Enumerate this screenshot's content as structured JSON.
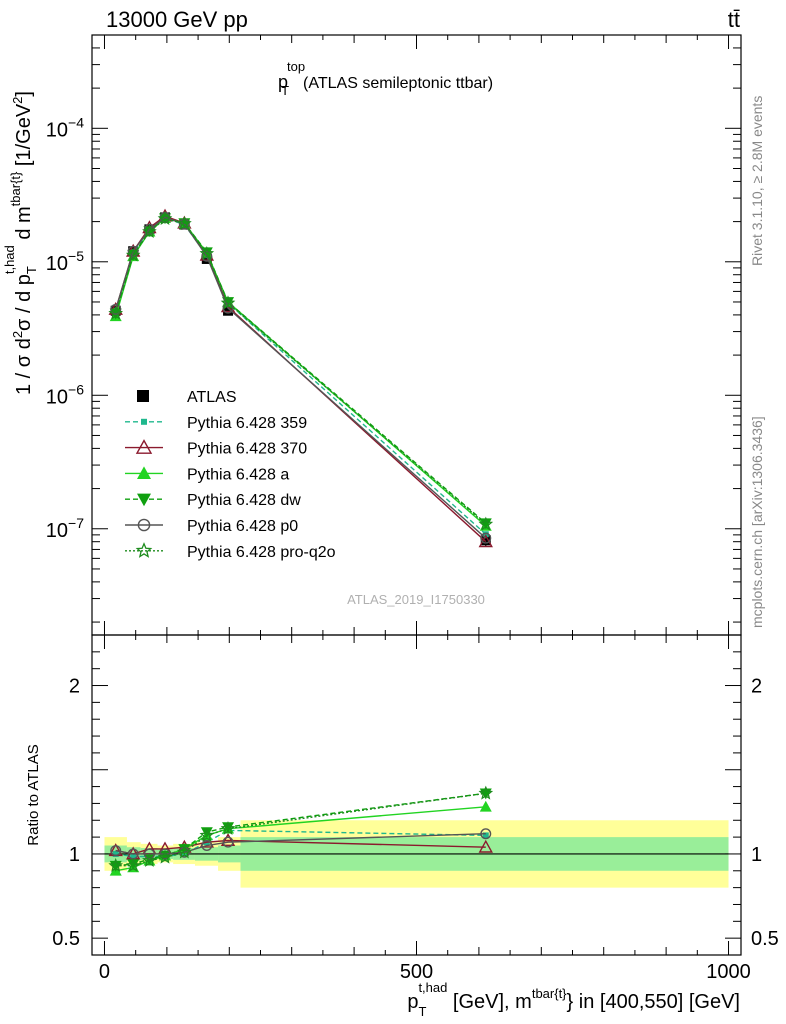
{
  "header": {
    "energy_label": "13000 GeV pp",
    "process_label": "tt̄"
  },
  "side": {
    "rivet": "Rivet 3.1.10, ≥ 2.8M events",
    "mcplots": "mcplots.cern.ch [arXiv:1306.3436]"
  },
  "analysis_label": "ATLAS_2019_I1750330",
  "chart_data": {
    "type": "line",
    "title": {
      "p": "p",
      "sup": "top",
      "sub": "T",
      "rest": "(ATLAS semileptonic ttbar)"
    },
    "ylabel": "1 / σ d²σ / d p_T^{t,had} d m^{tbar{t}} [1/GeV²]",
    "ratio_ylabel": "Ratio to ATLAS",
    "xlabel": "p_T^{t,had} [GeV], m^{tbar{t}} in [400,550] [GeV]",
    "xlim": [
      -20,
      1020
    ],
    "ylim": [
      1.6e-08,
      0.0005
    ],
    "yscale": "log",
    "ratio_ylim": [
      0.4,
      2.3
    ],
    "x_ticks": [
      {
        "v": 0,
        "label": "0"
      },
      {
        "v": 500,
        "label": "500"
      },
      {
        "v": 1000,
        "label": "1000"
      }
    ],
    "y_ticks": [
      {
        "v": 1e-07,
        "base": "10",
        "exp": "−7"
      },
      {
        "v": 1e-06,
        "base": "10",
        "exp": "−6"
      },
      {
        "v": 1e-05,
        "base": "10",
        "exp": "−5"
      },
      {
        "v": 0.0001,
        "base": "10",
        "exp": "−4"
      }
    ],
    "ratio_ticks": [
      {
        "v": 0.5,
        "label": "0.5"
      },
      {
        "v": 1,
        "label": "1"
      },
      {
        "v": 2,
        "label": "2"
      }
    ],
    "legend_position": "center-left",
    "x": [
      18,
      46,
      72,
      97,
      128,
      164,
      198,
      611
    ],
    "x_edges": [
      0,
      36,
      58,
      85,
      110,
      145,
      182,
      218,
      1000
    ],
    "data": {
      "name": "ATLAS",
      "values": [
        4.3e-06,
        1.2e-05,
        1.75e-05,
        2.15e-05,
        1.9e-05,
        1.05e-05,
        4.3e-06,
        8.2e-08
      ],
      "band_inner": [
        0.05,
        0.04,
        0.035,
        0.03,
        0.035,
        0.04,
        0.05,
        0.1
      ],
      "band_outer": [
        0.1,
        0.07,
        0.06,
        0.05,
        0.06,
        0.07,
        0.1,
        0.2
      ]
    },
    "series": [
      {
        "name": "Pythia 6.428 359",
        "color": "#1fb88d",
        "dash": "5,3",
        "marker": "square-small",
        "values": [
          4.3e-06,
          1.18e-05,
          1.72e-05,
          2.12e-05,
          1.9e-05,
          1.12e-05,
          4.9e-06,
          9.1e-08
        ],
        "ratio": [
          1.0,
          0.985,
          0.985,
          0.985,
          1.0,
          1.07,
          1.14,
          1.11
        ]
      },
      {
        "name": "Pythia 6.428 370",
        "color": "#8b1a2e",
        "dash": "",
        "marker": "triangle-open",
        "values": [
          4.4e-06,
          1.2e-05,
          1.8e-05,
          2.2e-05,
          1.95e-05,
          1.12e-05,
          4.6e-06,
          8e-08
        ],
        "ratio": [
          1.02,
          1.0,
          1.03,
          1.03,
          1.04,
          1.07,
          1.08,
          1.04
        ]
      },
      {
        "name": "Pythia 6.428 a",
        "color": "#22d422",
        "dash": "",
        "marker": "triangle-filled",
        "values": [
          3.9e-06,
          1.1e-05,
          1.68e-05,
          2.12e-05,
          1.95e-05,
          1.17e-05,
          5e-06,
          1.05e-07
        ],
        "ratio": [
          0.9,
          0.92,
          0.96,
          0.99,
          1.03,
          1.11,
          1.15,
          1.28
        ]
      },
      {
        "name": "Pythia 6.428 dw",
        "color": "#0fa00f",
        "dash": "5,3",
        "marker": "triangle-down-filled",
        "values": [
          4.1e-06,
          1.13e-05,
          1.7e-05,
          2.12e-05,
          1.95e-05,
          1.18e-05,
          5e-06,
          1.1e-07
        ],
        "ratio": [
          0.93,
          0.94,
          0.97,
          0.99,
          1.03,
          1.13,
          1.16,
          1.36
        ]
      },
      {
        "name": "Pythia 6.428 p0",
        "color": "#555555",
        "dash": "",
        "marker": "circle-open",
        "values": [
          4.4e-06,
          1.2e-05,
          1.75e-05,
          2.15e-05,
          1.92e-05,
          1.1e-05,
          4.5e-06,
          8.5e-08
        ],
        "ratio": [
          1.02,
          1.0,
          1.0,
          1.0,
          1.01,
          1.05,
          1.07,
          1.12
        ]
      },
      {
        "name": "Pythia 6.428 pro-q2o",
        "color": "#1e8c1e",
        "dash": "2,2",
        "marker": "star-open",
        "values": [
          4.1e-06,
          1.12e-05,
          1.68e-05,
          2.1e-05,
          1.93e-05,
          1.15e-05,
          4.9e-06,
          1.08e-07
        ],
        "ratio": [
          0.93,
          0.93,
          0.96,
          0.98,
          1.01,
          1.11,
          1.15,
          1.36
        ]
      }
    ]
  }
}
